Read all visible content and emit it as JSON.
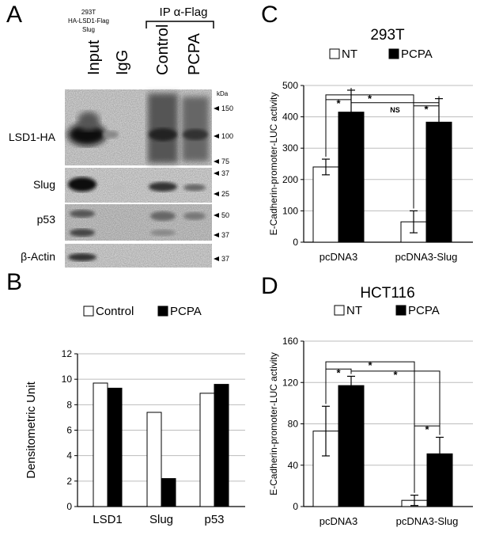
{
  "panels": {
    "A": {
      "letter": "A",
      "header": {
        "cell_line": "293T",
        "construct": "HA-LSD1-Flag",
        "gene": "Slug"
      },
      "ip_label": "IP α-Flag",
      "lanes": [
        "Input",
        "IgG",
        "Control",
        "PCPA"
      ],
      "kda_label": "kDa",
      "blots": [
        {
          "label": "LSD1-HA",
          "markers": [
            "150",
            "100",
            "75"
          ]
        },
        {
          "label": "Slug",
          "markers": [
            "37",
            "25"
          ]
        },
        {
          "label": "p53",
          "markers": [
            "50",
            "37"
          ]
        },
        {
          "label": "β-Actin",
          "markers": [
            "37"
          ]
        }
      ]
    },
    "B": {
      "letter": "B"
    },
    "C": {
      "letter": "C"
    },
    "D": {
      "letter": "D"
    }
  },
  "chart_data": [
    {
      "panel": "B",
      "type": "bar",
      "title": "",
      "ylabel": "Densitometric Unit",
      "categories": [
        "LSD1",
        "Slug",
        "p53"
      ],
      "series": [
        {
          "name": "Control",
          "color": "#ffffff",
          "values": [
            9.7,
            7.4,
            8.9
          ]
        },
        {
          "name": "PCPA",
          "color": "#000000",
          "values": [
            9.3,
            2.2,
            9.6
          ]
        }
      ],
      "ylim": [
        0,
        12
      ],
      "yticks": [
        "0",
        "2",
        "4",
        "6",
        "8",
        "10",
        "12"
      ],
      "legend": "top"
    },
    {
      "panel": "C",
      "type": "bar",
      "title": "293T",
      "ylabel": "E-Cadherin-promoter-LUC activity",
      "categories": [
        "pcDNA3",
        "pcDNA3-Slug"
      ],
      "series": [
        {
          "name": "NT",
          "color": "#ffffff",
          "values": [
            240,
            65
          ],
          "errors": [
            25,
            35
          ]
        },
        {
          "name": "PCPA",
          "color": "#000000",
          "values": [
            415,
            383
          ],
          "errors": [
            70,
            75
          ]
        }
      ],
      "ylim": [
        0,
        500
      ],
      "yticks": [
        "0",
        "100",
        "200",
        "300",
        "400",
        "500"
      ],
      "legend": "top",
      "annotations": [
        "*",
        "*",
        "NS",
        "*"
      ]
    },
    {
      "panel": "D",
      "type": "bar",
      "title": "HCT116",
      "ylabel": "E-Cadherin-promoter-LUC activity",
      "categories": [
        "pcDNA3",
        "pcDNA3-Slug"
      ],
      "series": [
        {
          "name": "NT",
          "color": "#ffffff",
          "values": [
            73,
            6
          ],
          "errors": [
            24,
            5
          ]
        },
        {
          "name": "PCPA",
          "color": "#000000",
          "values": [
            117,
            51
          ],
          "errors": [
            9,
            16
          ]
        }
      ],
      "ylim": [
        0,
        160
      ],
      "yticks": [
        "0",
        "40",
        "80",
        "120",
        "160"
      ],
      "legend": "top",
      "annotations": [
        "*",
        "*",
        "*",
        "*"
      ]
    }
  ]
}
